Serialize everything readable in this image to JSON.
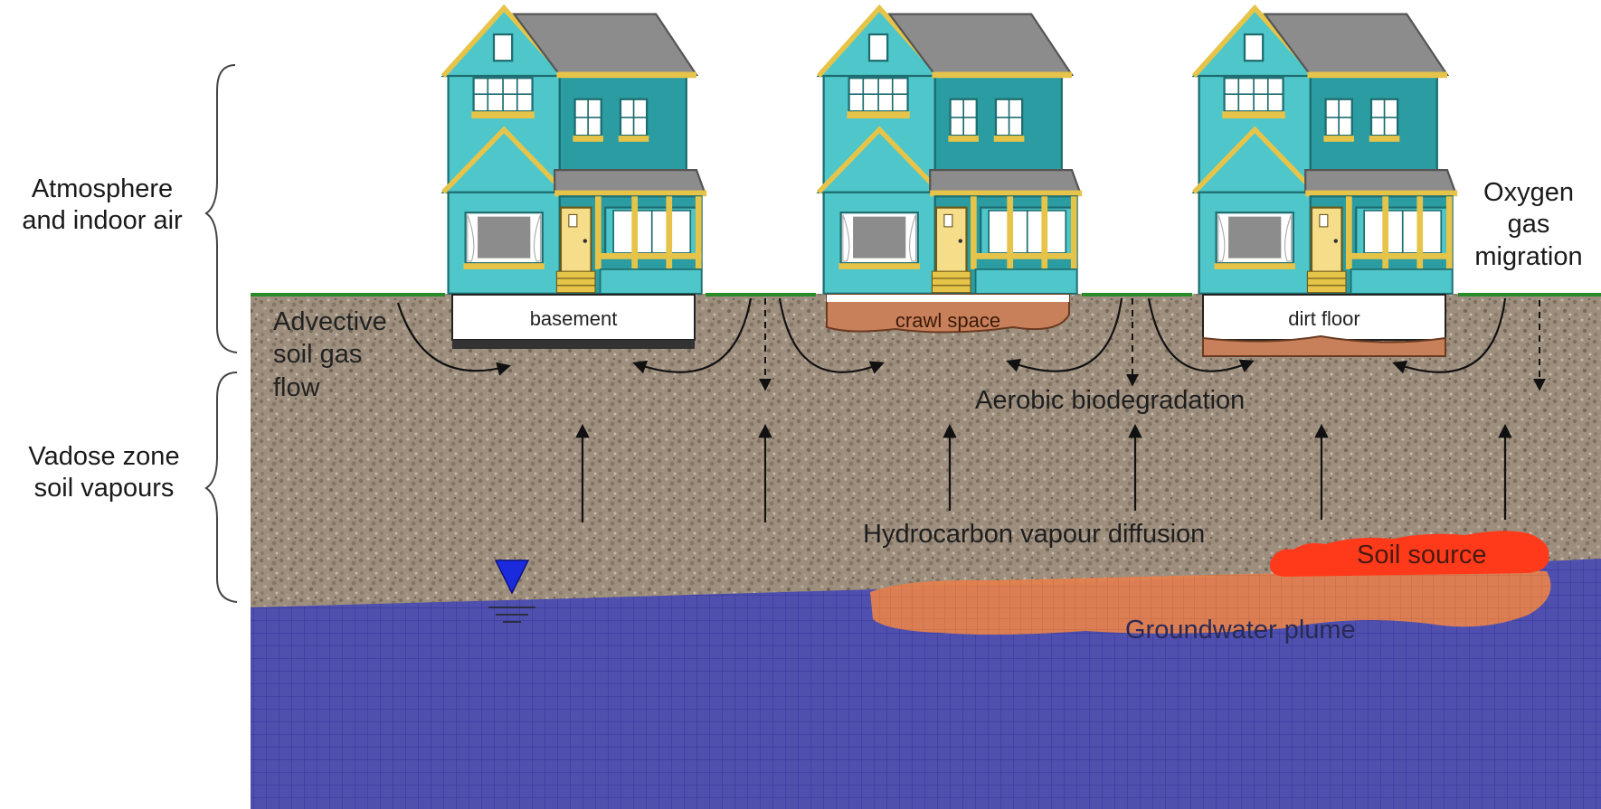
{
  "labels": {
    "atmosphere": "Atmosphere\nand indoor air",
    "vadose": "Vadose zone\nsoil vapours",
    "advective": "Advective\nsoil gas\nflow",
    "oxygen": "Oxygen\ngas\nmigration",
    "aerobic": "Aerobic biodegradation",
    "hydrocarbon": "Hydrocarbon vapour diffusion",
    "soil_source": "Soil source",
    "groundwater_plume": "Groundwater plume"
  },
  "houses": [
    {
      "foundation": "basement"
    },
    {
      "foundation": "crawl space"
    },
    {
      "foundation": "dirt floor"
    }
  ],
  "colors": {
    "soil": "#9c8c7a",
    "groundwater": "#4a4aa8",
    "plume": "#e07a4a",
    "soil_source": "#ff3a1a",
    "house_light": "#4fc3c6",
    "house_dark": "#2a9ea3",
    "roof": "#8a8a8a",
    "trim": "#e8c84a",
    "grass": "#2a8a2a",
    "water_table_marker": "#1a2adc"
  }
}
